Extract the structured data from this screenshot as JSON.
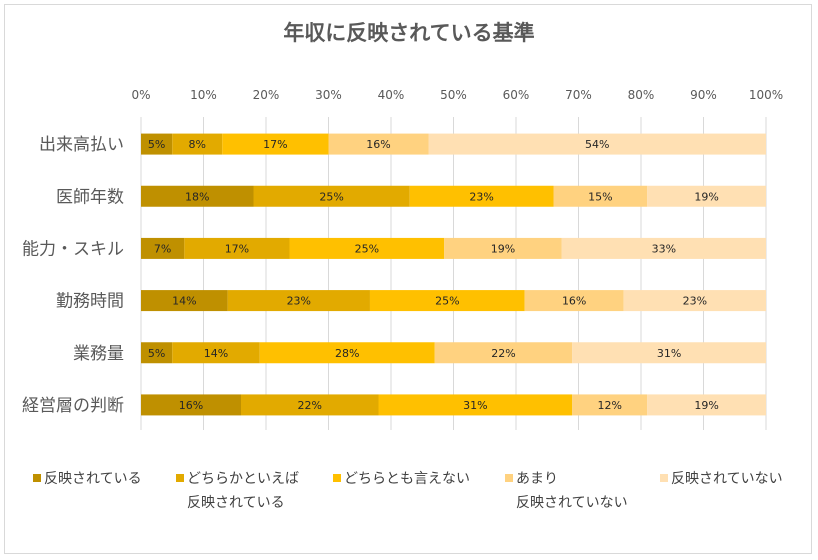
{
  "chart_data": {
    "type": "bar",
    "orientation": "horizontal",
    "stacked": true,
    "title": "年収に反映されている基準",
    "xlim": [
      0,
      100
    ],
    "x_ticks": [
      "0%",
      "10%",
      "20%",
      "30%",
      "40%",
      "50%",
      "60%",
      "70%",
      "80%",
      "90%",
      "100%"
    ],
    "grid": true,
    "legend_position": "bottom",
    "categories": [
      "出来高払い",
      "医師年数",
      "能力・スキル",
      "勤務時間",
      "業務量",
      "経営層の判断"
    ],
    "series": [
      {
        "name": "反映されている",
        "color": "#BF9000",
        "values": [
          5,
          18,
          7,
          14,
          5,
          16
        ]
      },
      {
        "name": "どちらかといえば反映されている",
        "legend_lines": [
          "どちらかといえば",
          "反映されている"
        ],
        "color": "#E2AA00",
        "values": [
          8,
          25,
          17,
          23,
          14,
          22
        ]
      },
      {
        "name": "どちらとも言えない",
        "legend_lines": [
          "どちらとも言えない"
        ],
        "color": "#FFC000",
        "values": [
          17,
          23,
          25,
          25,
          28,
          31
        ]
      },
      {
        "name": "あまり反映されていない",
        "legend_lines": [
          "あまり",
          "反映されていない"
        ],
        "color": "#FFD280",
        "values": [
          16,
          15,
          19,
          16,
          22,
          12
        ]
      },
      {
        "name": "反映されていない",
        "legend_lines": [
          "反映されていない"
        ],
        "color": "#FFE0B3",
        "values": [
          54,
          19,
          33,
          23,
          31,
          19
        ]
      }
    ]
  }
}
